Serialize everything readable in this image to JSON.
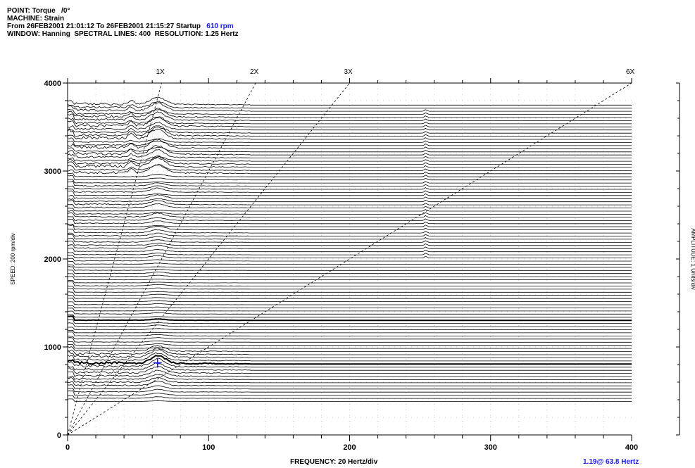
{
  "header": {
    "point_label": "POINT: Torque",
    "point_angle": "/0°",
    "machine": "MACHINE: Strain",
    "range_text": "From 26FEB2001 21:01:12 To 26FEB2001 21:15:27 Startup",
    "rpm": "610 rpm",
    "window": "WINDOW: Hanning  SPECTRAL LINES: 400  RESOLUTION: 1.25 Hertz"
  },
  "chart_data": {
    "type": "line",
    "subtype": "waterfall",
    "xlabel": "FREQUENCY: 20 Hertz/div",
    "ylabel": "SPEED: 200 rpm/div",
    "zlabel": "AMPLITUDE: 1 Units/div",
    "xlim": [
      0,
      400
    ],
    "ylim": [
      0,
      4000
    ],
    "x_ticks": [
      "0",
      "100",
      "200",
      "300",
      "400"
    ],
    "y_ticks": [
      "0",
      "1000",
      "2000",
      "3000",
      "4000"
    ],
    "order_lines": [
      {
        "label": "1X",
        "order": 1
      },
      {
        "label": "2X",
        "order": 2
      },
      {
        "label": "3X",
        "order": 3
      },
      {
        "label": "6X",
        "order": 6
      }
    ],
    "speed_range_rpm": [
      380,
      3750
    ],
    "cursor": {
      "frequency_hz": 63.8,
      "amplitude": 1.19,
      "speed_rpm": 820
    },
    "peaks": [
      {
        "frequency_hz": 64,
        "note": "1X resonance region, strongest near 3500-4000 rpm and 400-900 rpm"
      },
      {
        "frequency_hz": 45,
        "note": "secondary peak near 3800 rpm"
      },
      {
        "frequency_hz": 254,
        "note": "narrow line component 2000-3700 rpm"
      }
    ],
    "grid": true
  },
  "footer": {
    "cursor_text": "1.19@ 63.8 Hertz",
    "cursor_color": "#1a1aff"
  }
}
